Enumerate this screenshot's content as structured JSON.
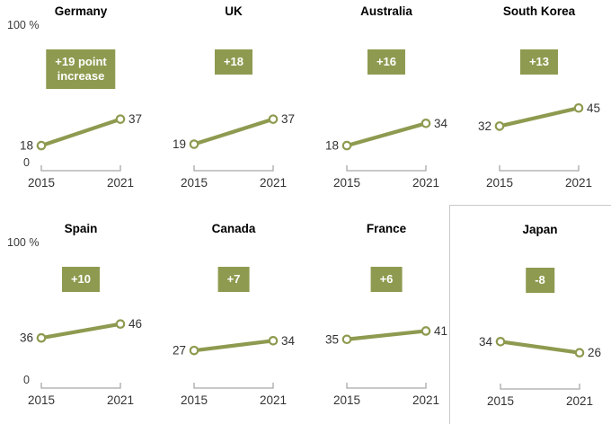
{
  "chart_data": {
    "type": "line",
    "unit": "%",
    "x_ticks": [
      "2015",
      "2021"
    ],
    "ylim": [
      0,
      100
    ],
    "grid": false,
    "y_axis": {
      "top_label": "100 %",
      "bottom_label": "0"
    },
    "colors": {
      "line": "#8e9a4f",
      "badge_bg": "#8e9a4f",
      "badge_text": "#ffffff",
      "value_label": "#333333",
      "axis": "#a8a8a8",
      "box_border": "#c9c9c9"
    },
    "panels": [
      {
        "country": "Germany",
        "badge": "+19 point\nincrease",
        "values": [
          18,
          37
        ],
        "show_scale": true,
        "boxed": false
      },
      {
        "country": "UK",
        "badge": "+18",
        "values": [
          19,
          37
        ],
        "show_scale": false,
        "boxed": false
      },
      {
        "country": "Australia",
        "badge": "+16",
        "values": [
          18,
          34
        ],
        "show_scale": false,
        "boxed": false
      },
      {
        "country": "South Korea",
        "badge": "+13",
        "values": [
          32,
          45
        ],
        "show_scale": false,
        "boxed": false
      },
      {
        "country": "Spain",
        "badge": "+10",
        "values": [
          36,
          46
        ],
        "show_scale": true,
        "boxed": false
      },
      {
        "country": "Canada",
        "badge": "+7",
        "values": [
          27,
          34
        ],
        "show_scale": false,
        "boxed": false
      },
      {
        "country": "France",
        "badge": "+6",
        "values": [
          35,
          41
        ],
        "show_scale": false,
        "boxed": false
      },
      {
        "country": "Japan",
        "badge": "-8",
        "values": [
          34,
          26
        ],
        "show_scale": false,
        "boxed": true
      }
    ]
  }
}
